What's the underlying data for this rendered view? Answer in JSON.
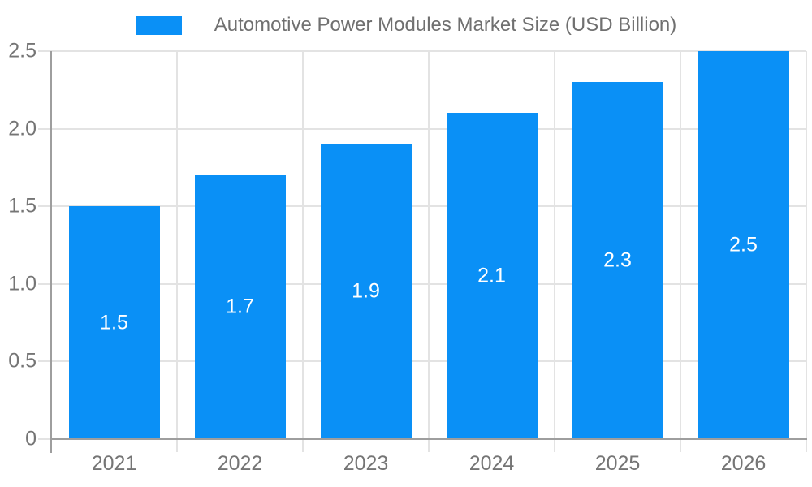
{
  "chart_data": {
    "type": "bar",
    "title": "Automotive Power Modules Market Size (USD Billion)",
    "legend": {
      "position": "top",
      "entries": [
        "Automotive Power Modules Market Size (USD Billion)"
      ]
    },
    "categories": [
      "2021",
      "2022",
      "2023",
      "2024",
      "2025",
      "2026"
    ],
    "series": [
      {
        "name": "Automotive Power Modules Market Size (USD Billion)",
        "values": [
          1.5,
          1.7,
          1.9,
          2.1,
          2.3,
          2.5
        ],
        "data_labels": [
          "1.5",
          "1.7",
          "1.9",
          "2.1",
          "2.3",
          "2.5"
        ]
      }
    ],
    "xlabel": "",
    "ylabel": "",
    "ylim": [
      0,
      2.5
    ],
    "yticks": [
      {
        "label": "0",
        "value": 0.0
      },
      {
        "label": "0.5",
        "value": 0.5
      },
      {
        "label": "1.0",
        "value": 1.0
      },
      {
        "label": "1.5",
        "value": 1.5
      },
      {
        "label": "2.0",
        "value": 2.0
      },
      {
        "label": "2.5",
        "value": 2.5
      }
    ],
    "grid": true,
    "colors": {
      "bar": "#0a90f6",
      "axis_line": "#9e9e9e",
      "gridline": "#e3e3e3",
      "tick_label": "#757575",
      "title_text": "#707070",
      "bar_label": "#ffffff"
    }
  }
}
